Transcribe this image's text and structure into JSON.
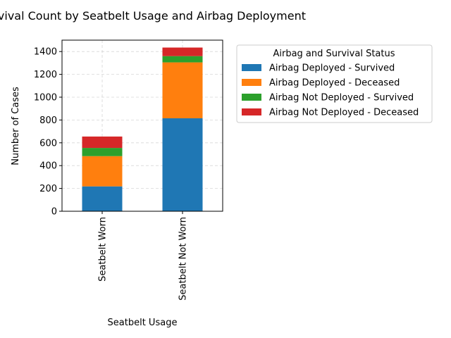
{
  "chart_data": {
    "type": "bar",
    "stacked": true,
    "title": "Survival Count by Seatbelt Usage and Airbag Deployment",
    "xlabel": "Seatbelt Usage",
    "ylabel": "Number of Cases",
    "categories": [
      "Seatbelt Worn",
      "Seatbelt Not Worn"
    ],
    "ylim": [
      0,
      1500
    ],
    "yticks": [
      0,
      200,
      400,
      600,
      800,
      1000,
      1200,
      1400
    ],
    "grid": true,
    "legend": {
      "title": "Airbag and Survival Status",
      "placement": "outside-right"
    },
    "series": [
      {
        "name": "Airbag Deployed - Survived",
        "color": "#1f77b4",
        "values": [
          218,
          815
        ]
      },
      {
        "name": "Airbag Deployed - Deceased",
        "color": "#ff7f0e",
        "values": [
          265,
          490
        ]
      },
      {
        "name": "Airbag Not Deployed - Survived",
        "color": "#2ca02c",
        "values": [
          72,
          55
        ]
      },
      {
        "name": "Airbag Not Deployed - Deceased",
        "color": "#d62728",
        "values": [
          100,
          75
        ]
      }
    ]
  }
}
